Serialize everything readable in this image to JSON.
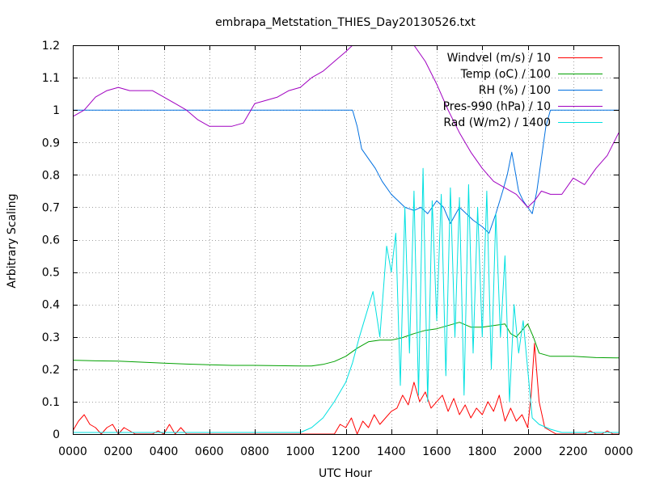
{
  "chart_data": {
    "type": "line",
    "title": "embrapa_Metstation_THIES_Day20130526.txt",
    "xlabel": "UTC Hour",
    "ylabel": "Arbitrary Scaling",
    "xlim": [
      0,
      24
    ],
    "ylim": [
      0,
      1.2
    ],
    "grid": true,
    "legend_position": "top-right",
    "x_ticks": [
      {
        "value": 0,
        "label": "0000"
      },
      {
        "value": 2,
        "label": "0200"
      },
      {
        "value": 4,
        "label": "0400"
      },
      {
        "value": 6,
        "label": "0600"
      },
      {
        "value": 8,
        "label": "0800"
      },
      {
        "value": 10,
        "label": "1000"
      },
      {
        "value": 12,
        "label": "1200"
      },
      {
        "value": 14,
        "label": "1400"
      },
      {
        "value": 16,
        "label": "1600"
      },
      {
        "value": 18,
        "label": "1800"
      },
      {
        "value": 20,
        "label": "2000"
      },
      {
        "value": 22,
        "label": "2200"
      },
      {
        "value": 24,
        "label": "0000"
      }
    ],
    "y_ticks": [
      {
        "value": 0,
        "label": "0"
      },
      {
        "value": 0.1,
        "label": "0.1"
      },
      {
        "value": 0.2,
        "label": "0.2"
      },
      {
        "value": 0.3,
        "label": "0.3"
      },
      {
        "value": 0.4,
        "label": "0.4"
      },
      {
        "value": 0.5,
        "label": "0.5"
      },
      {
        "value": 0.6,
        "label": "0.6"
      },
      {
        "value": 0.7,
        "label": "0.7"
      },
      {
        "value": 0.8,
        "label": "0.8"
      },
      {
        "value": 0.9,
        "label": "0.9"
      },
      {
        "value": 1.0,
        "label": "1"
      },
      {
        "value": 1.1,
        "label": "1.1"
      },
      {
        "value": 1.2,
        "label": "1.2"
      }
    ],
    "series": [
      {
        "name": "Windvel (m/s) / 10",
        "color": "#ff0000",
        "x": [
          0,
          0.25,
          0.5,
          0.75,
          1.0,
          1.25,
          1.5,
          1.75,
          2.0,
          2.25,
          2.5,
          2.75,
          3.0,
          3.25,
          3.5,
          3.75,
          4.0,
          4.25,
          4.5,
          4.75,
          5.0,
          5.25,
          5.5,
          6,
          8,
          10,
          11.5,
          11.75,
          12.0,
          12.25,
          12.5,
          12.75,
          13.0,
          13.25,
          13.5,
          13.75,
          14.0,
          14.25,
          14.5,
          14.75,
          15.0,
          15.25,
          15.5,
          15.75,
          16.0,
          16.25,
          16.5,
          16.75,
          17.0,
          17.25,
          17.5,
          17.75,
          18.0,
          18.25,
          18.5,
          18.75,
          19.0,
          19.25,
          19.5,
          19.75,
          20.0,
          20.15,
          20.3,
          20.5,
          20.75,
          21.0,
          21.25,
          21.5,
          21.75,
          22.0,
          22.25,
          22.5,
          22.75,
          23.0,
          23.25,
          23.5,
          23.75,
          24.0
        ],
        "y": [
          0.01,
          0.04,
          0.06,
          0.03,
          0.02,
          0.0,
          0.02,
          0.03,
          0.0,
          0.02,
          0.01,
          0.0,
          0.0,
          0.0,
          0.0,
          0.01,
          0.0,
          0.03,
          0.0,
          0.02,
          0.0,
          0.0,
          0.0,
          0.0,
          0.0,
          0.0,
          0.0,
          0.03,
          0.02,
          0.05,
          0.0,
          0.04,
          0.02,
          0.06,
          0.03,
          0.05,
          0.07,
          0.08,
          0.12,
          0.09,
          0.16,
          0.1,
          0.13,
          0.08,
          0.1,
          0.12,
          0.07,
          0.11,
          0.06,
          0.09,
          0.05,
          0.08,
          0.06,
          0.1,
          0.07,
          0.12,
          0.04,
          0.08,
          0.04,
          0.06,
          0.02,
          0.12,
          0.28,
          0.1,
          0.02,
          0.01,
          0.0,
          0.0,
          0.0,
          0.0,
          0.0,
          0.0,
          0.01,
          0.0,
          0.0,
          0.01,
          0.0,
          0.0
        ]
      },
      {
        "name": "Temp (oC) / 100",
        "color": "#00a000",
        "x": [
          0,
          1,
          2,
          3,
          4,
          5,
          6,
          7,
          8,
          9,
          10,
          10.5,
          11,
          11.5,
          12,
          12.5,
          13,
          13.5,
          14,
          14.5,
          15,
          15.5,
          16,
          16.5,
          17,
          17.5,
          18,
          18.5,
          19,
          19.25,
          19.5,
          19.75,
          20,
          20.25,
          20.5,
          21,
          22,
          23,
          24
        ],
        "y": [
          0.228,
          0.226,
          0.225,
          0.222,
          0.219,
          0.216,
          0.214,
          0.212,
          0.212,
          0.211,
          0.21,
          0.21,
          0.215,
          0.224,
          0.24,
          0.265,
          0.285,
          0.29,
          0.29,
          0.298,
          0.31,
          0.32,
          0.325,
          0.335,
          0.345,
          0.33,
          0.33,
          0.335,
          0.34,
          0.31,
          0.3,
          0.32,
          0.34,
          0.3,
          0.25,
          0.24,
          0.24,
          0.236,
          0.235
        ]
      },
      {
        "name": "RH (%) / 100",
        "color": "#0070e0",
        "x": [
          0,
          4,
          8,
          12,
          12.3,
          12.5,
          12.7,
          13.0,
          13.3,
          13.6,
          14.0,
          14.3,
          14.6,
          15.0,
          15.3,
          15.6,
          16.0,
          16.3,
          16.6,
          17.0,
          17.3,
          17.6,
          18.0,
          18.3,
          18.6,
          18.9,
          19.1,
          19.3,
          19.6,
          19.8,
          20.0,
          20.2,
          20.4,
          20.6,
          20.8,
          21.0,
          22,
          23,
          24
        ],
        "y": [
          1.0,
          1.0,
          1.0,
          1.0,
          1.0,
          0.95,
          0.88,
          0.85,
          0.82,
          0.78,
          0.74,
          0.72,
          0.7,
          0.69,
          0.7,
          0.68,
          0.72,
          0.7,
          0.65,
          0.7,
          0.68,
          0.66,
          0.64,
          0.62,
          0.68,
          0.75,
          0.8,
          0.87,
          0.75,
          0.72,
          0.7,
          0.68,
          0.75,
          0.85,
          0.95,
          1.0,
          1.0,
          1.0,
          1.0
        ]
      },
      {
        "name": "Pres-990 (hPa) / 10",
        "color": "#a000c0",
        "x": [
          0,
          0.5,
          1.0,
          1.5,
          2.0,
          2.5,
          3.0,
          3.5,
          4.0,
          4.5,
          5.0,
          5.5,
          6.0,
          6.5,
          7.0,
          7.5,
          8.0,
          8.5,
          9.0,
          9.5,
          10.0,
          10.5,
          11.0,
          11.5,
          12.0,
          12.3,
          15.0,
          15.5,
          16.0,
          16.5,
          17.0,
          17.5,
          18.0,
          18.5,
          19.0,
          19.5,
          20.0,
          20.3,
          20.6,
          21.0,
          21.5,
          22.0,
          22.5,
          23.0,
          23.5,
          24.0
        ],
        "y": [
          0.98,
          1.0,
          1.04,
          1.06,
          1.07,
          1.06,
          1.06,
          1.06,
          1.04,
          1.02,
          1.0,
          0.97,
          0.95,
          0.95,
          0.95,
          0.96,
          1.02,
          1.03,
          1.04,
          1.06,
          1.07,
          1.1,
          1.12,
          1.15,
          1.18,
          1.2,
          1.2,
          1.15,
          1.08,
          1.0,
          0.93,
          0.87,
          0.82,
          0.78,
          0.76,
          0.74,
          0.7,
          0.72,
          0.75,
          0.74,
          0.74,
          0.79,
          0.77,
          0.82,
          0.86,
          0.93
        ]
      },
      {
        "name": "Rad (W/m2) / 1400",
        "color": "#00e0e0",
        "x": [
          0,
          2,
          4,
          6,
          8,
          10,
          10.5,
          11.0,
          11.5,
          12.0,
          12.3,
          12.6,
          12.9,
          13.2,
          13.5,
          13.8,
          14.0,
          14.2,
          14.4,
          14.6,
          14.8,
          15.0,
          15.2,
          15.4,
          15.6,
          15.8,
          16.0,
          16.2,
          16.4,
          16.6,
          16.8,
          17.0,
          17.2,
          17.4,
          17.6,
          17.8,
          18.0,
          18.2,
          18.4,
          18.6,
          18.8,
          19.0,
          19.2,
          19.4,
          19.6,
          19.8,
          20.0,
          20.2,
          20.5,
          21.0,
          21.5,
          22.0,
          24.0
        ],
        "y": [
          0.005,
          0.005,
          0.005,
          0.005,
          0.005,
          0.005,
          0.02,
          0.05,
          0.1,
          0.16,
          0.22,
          0.3,
          0.37,
          0.44,
          0.3,
          0.58,
          0.5,
          0.62,
          0.15,
          0.7,
          0.25,
          0.75,
          0.12,
          0.82,
          0.1,
          0.72,
          0.35,
          0.74,
          0.18,
          0.76,
          0.3,
          0.73,
          0.12,
          0.77,
          0.25,
          0.7,
          0.3,
          0.75,
          0.2,
          0.68,
          0.3,
          0.55,
          0.1,
          0.4,
          0.25,
          0.35,
          0.2,
          0.05,
          0.03,
          0.015,
          0.005,
          0.005,
          0.005
        ]
      }
    ]
  }
}
